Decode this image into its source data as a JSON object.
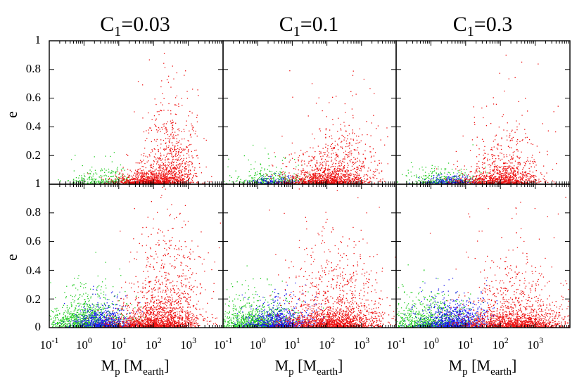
{
  "chart_data": {
    "type": "scatter",
    "xscale": "log",
    "xlim": [
      0.1,
      10000
    ],
    "ylim": [
      0,
      1
    ],
    "grid": false,
    "legend": "none",
    "panel_titles": [
      {
        "prefix": "C",
        "sub": "1",
        "suffix": "=0.03"
      },
      {
        "prefix": "C",
        "sub": "1",
        "suffix": "=0.1"
      },
      {
        "prefix": "C",
        "sub": "1",
        "suffix": "=0.3"
      }
    ],
    "ylabel": "e",
    "xlabel": {
      "main": "M",
      "main_sub": "p",
      "open": " [M",
      "inner_sub": "earth",
      "close": "]"
    },
    "yticks": [
      "0",
      "0.2",
      "0.4",
      "0.6",
      "0.8",
      "1"
    ],
    "xticks": [
      {
        "base": "10",
        "exp": "-1"
      },
      {
        "base": "10",
        "exp": "0"
      },
      {
        "base": "10",
        "exp": "1"
      },
      {
        "base": "10",
        "exp": "2"
      },
      {
        "base": "10",
        "exp": "3"
      }
    ],
    "series_colors": {
      "green": "#22cc22",
      "blue": "#1a1aee",
      "red": "#ee1111"
    },
    "panels": [
      {
        "row": 0,
        "col": 0,
        "clouds": [
          {
            "color": "green",
            "n": 260,
            "mu": 0.55,
            "sigma": 0.5,
            "e_scale": 0.045,
            "e_max": 0.3
          },
          {
            "color": "red",
            "n": 900,
            "mu": 1.85,
            "sigma": 0.45,
            "e_scale": 0.03,
            "e_max": 0.22
          },
          {
            "color": "red",
            "n": 750,
            "mu": 2.55,
            "sigma": 0.42,
            "e_scale": 0.2,
            "e_max": 1.0
          }
        ]
      },
      {
        "row": 0,
        "col": 1,
        "clouds": [
          {
            "color": "green",
            "n": 320,
            "mu": 0.35,
            "sigma": 0.55,
            "e_scale": 0.04,
            "e_max": 0.3
          },
          {
            "color": "blue",
            "n": 160,
            "mu": 0.5,
            "sigma": 0.35,
            "e_scale": 0.018,
            "e_max": 0.08
          },
          {
            "color": "red",
            "n": 800,
            "mu": 1.95,
            "sigma": 0.6,
            "e_scale": 0.035,
            "e_max": 0.25
          },
          {
            "color": "red",
            "n": 650,
            "mu": 2.3,
            "sigma": 0.6,
            "e_scale": 0.15,
            "e_max": 0.95
          }
        ]
      },
      {
        "row": 0,
        "col": 2,
        "clouds": [
          {
            "color": "green",
            "n": 340,
            "mu": 0.3,
            "sigma": 0.55,
            "e_scale": 0.04,
            "e_max": 0.3
          },
          {
            "color": "blue",
            "n": 230,
            "mu": 0.55,
            "sigma": 0.35,
            "e_scale": 0.02,
            "e_max": 0.08
          },
          {
            "color": "red",
            "n": 650,
            "mu": 1.9,
            "sigma": 0.55,
            "e_scale": 0.035,
            "e_max": 0.25
          },
          {
            "color": "red",
            "n": 520,
            "mu": 2.2,
            "sigma": 0.55,
            "e_scale": 0.14,
            "e_max": 0.9
          }
        ]
      },
      {
        "row": 1,
        "col": 0,
        "clouds": [
          {
            "color": "green",
            "n": 1100,
            "mu": 0.1,
            "sigma": 0.6,
            "e_scale": 0.07,
            "e_max": 1.0
          },
          {
            "color": "blue",
            "n": 700,
            "mu": 0.55,
            "sigma": 0.4,
            "e_scale": 0.05,
            "e_max": 0.4
          },
          {
            "color": "red",
            "n": 1000,
            "mu": 1.95,
            "sigma": 0.6,
            "e_scale": 0.04,
            "e_max": 0.35
          },
          {
            "color": "red",
            "n": 900,
            "mu": 2.4,
            "sigma": 0.55,
            "e_scale": 0.22,
            "e_max": 1.0
          }
        ]
      },
      {
        "row": 1,
        "col": 1,
        "clouds": [
          {
            "color": "green",
            "n": 1000,
            "mu": 0.0,
            "sigma": 0.6,
            "e_scale": 0.06,
            "e_max": 1.0
          },
          {
            "color": "blue",
            "n": 800,
            "mu": 0.65,
            "sigma": 0.5,
            "e_scale": 0.05,
            "e_max": 0.45
          },
          {
            "color": "red",
            "n": 1000,
            "mu": 2.2,
            "sigma": 0.7,
            "e_scale": 0.04,
            "e_max": 0.35
          },
          {
            "color": "red",
            "n": 800,
            "mu": 2.3,
            "sigma": 0.7,
            "e_scale": 0.2,
            "e_max": 1.0
          }
        ]
      },
      {
        "row": 1,
        "col": 2,
        "clouds": [
          {
            "color": "green",
            "n": 900,
            "mu": 0.0,
            "sigma": 0.6,
            "e_scale": 0.06,
            "e_max": 1.0
          },
          {
            "color": "blue",
            "n": 950,
            "mu": 0.7,
            "sigma": 0.5,
            "e_scale": 0.06,
            "e_max": 0.6
          },
          {
            "color": "red",
            "n": 950,
            "mu": 2.4,
            "sigma": 0.75,
            "e_scale": 0.04,
            "e_max": 0.35
          },
          {
            "color": "red",
            "n": 650,
            "mu": 2.4,
            "sigma": 0.7,
            "e_scale": 0.18,
            "e_max": 1.0
          }
        ]
      }
    ]
  }
}
